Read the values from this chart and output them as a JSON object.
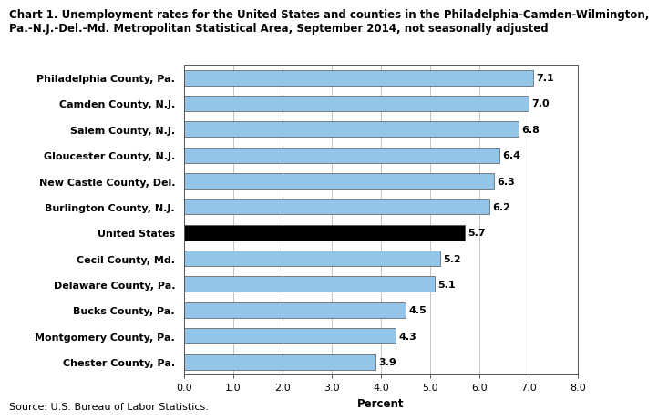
{
  "title_line1": "Chart 1. Unemployment rates for the United States and counties in the Philadelphia-Camden-Wilmington,",
  "title_line2": "Pa.-N.J.-Del.-Md. Metropolitan Statistical Area, September 2014, not seasonally adjusted",
  "categories": [
    "Chester County, Pa.",
    "Montgomery County, Pa.",
    "Bucks County, Pa.",
    "Delaware County, Pa.",
    "Cecil County, Md.",
    "United States",
    "Burlington County, N.J.",
    "New Castle County, Del.",
    "Gloucester County, N.J.",
    "Salem County, N.J.",
    "Camden County, N.J.",
    "Philadelphia County, Pa."
  ],
  "values": [
    3.9,
    4.3,
    4.5,
    5.1,
    5.2,
    5.7,
    6.2,
    6.3,
    6.4,
    6.8,
    7.0,
    7.1
  ],
  "bar_colors": [
    "#92C5E8",
    "#92C5E8",
    "#92C5E8",
    "#92C5E8",
    "#92C5E8",
    "#000000",
    "#92C5E8",
    "#92C5E8",
    "#92C5E8",
    "#92C5E8",
    "#92C5E8",
    "#92C5E8"
  ],
  "us_index": 5,
  "xlabel": "Percent",
  "xlim": [
    0.0,
    8.0
  ],
  "xticks": [
    0.0,
    1.0,
    2.0,
    3.0,
    4.0,
    5.0,
    6.0,
    7.0,
    8.0
  ],
  "source": "Source: U.S. Bureau of Labor Statistics.",
  "bar_edgecolor": "#555555",
  "label_fontsize": 8,
  "value_fontsize": 8,
  "title_fontsize": 8.5,
  "xlabel_fontsize": 8.5,
  "source_fontsize": 8,
  "background_color": "#ffffff",
  "grid_color": "#bbbbbb"
}
